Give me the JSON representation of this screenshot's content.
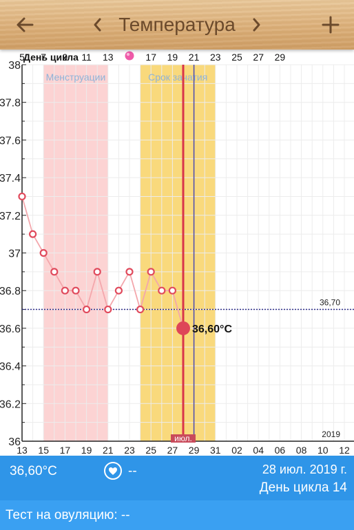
{
  "header": {
    "title": "Температура",
    "back_icon": "arrow-left-icon",
    "prev_icon": "chevron-left-icon",
    "next_icon": "chevron-right-icon",
    "add_icon": "plus-icon"
  },
  "chart_data": {
    "type": "line",
    "cycle_label": "День цикла",
    "top_ticks": [
      "5",
      "7",
      "9",
      "11",
      "13",
      "15",
      "17",
      "19",
      "21",
      "23",
      "25",
      "27",
      "29"
    ],
    "bottom_ticks": [
      "13",
      "15",
      "17",
      "19",
      "21",
      "23",
      "25",
      "27",
      "29",
      "31",
      "02",
      "04",
      "06",
      "08",
      "10",
      "12"
    ],
    "y_ticks": [
      "38",
      "37.8",
      "37.6",
      "37.4",
      "37.2",
      "37",
      "36.8",
      "36.6",
      "36.4",
      "36.2",
      "36"
    ],
    "ylim": [
      36,
      38
    ],
    "x": [
      13,
      14,
      15,
      16,
      17,
      18,
      19,
      20,
      21,
      22,
      23,
      24,
      25,
      26,
      27,
      28
    ],
    "values": [
      37.3,
      37.1,
      37.0,
      36.9,
      36.8,
      36.8,
      36.7,
      36.9,
      36.7,
      36.8,
      36.9,
      36.7,
      36.9,
      36.8,
      36.8,
      36.6
    ],
    "selected_label": "36,60°C",
    "baseline_value": 36.7,
    "baseline_label": "36,70",
    "bands": [
      {
        "label": "Менструации",
        "from": 15,
        "to": 21,
        "color": "#fcd3d3",
        "text_color": "#8fb3d8"
      },
      {
        "label": "Срок зачатия",
        "from": 24,
        "to": 31,
        "color": "#f9d97c",
        "text_color": "#8fb3d8"
      }
    ],
    "today_x": 28,
    "ovulation_x": 29,
    "month_label": "июл.",
    "year_label": "2019"
  },
  "details": {
    "temperature": "36,60°C",
    "icon": "heart-circle-icon",
    "intercourse_value": "--",
    "date": "28 июл. 2019 г.",
    "cycle_day": "День цикла 14"
  },
  "ovulation_test": {
    "label": "Тест на овуляцию: --"
  }
}
